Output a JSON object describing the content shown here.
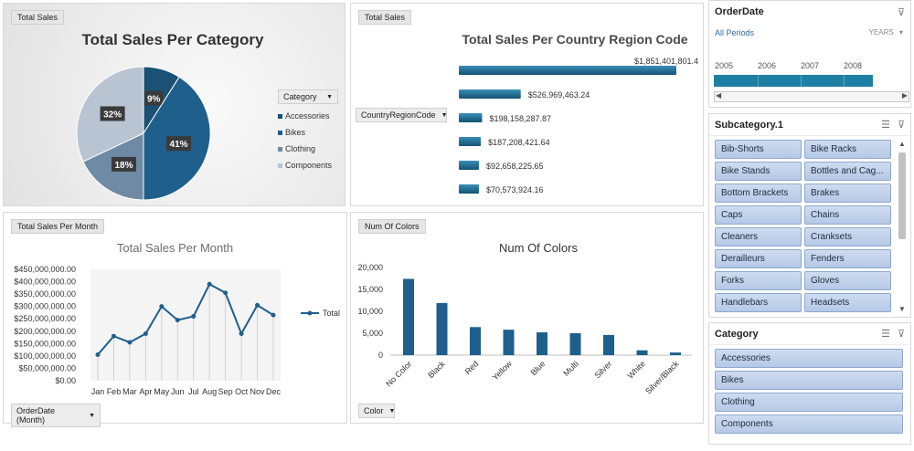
{
  "panels": {
    "pie": {
      "tag": "Total Sales",
      "title": "Total Sales Per Category",
      "legend_title": "Category",
      "legend": [
        {
          "name": "Accessories",
          "color": "#1a5174"
        },
        {
          "name": "Bikes",
          "color": "#1f5f8b"
        },
        {
          "name": "Clothing",
          "color": "#6e8aa4"
        },
        {
          "name": "Components",
          "color": "#b8c4d2"
        }
      ],
      "slices": [
        {
          "name": "Accessories",
          "pct": 9,
          "label": "9%",
          "color": "#1a5174"
        },
        {
          "name": "Bikes",
          "pct": 41,
          "label": "41%",
          "color": "#1f5f8b"
        },
        {
          "name": "Clothing",
          "pct": 18,
          "label": "18%",
          "color": "#6e8aa4"
        },
        {
          "name": "Components",
          "pct": 32,
          "label": "32%",
          "color": "#b8c4d2"
        }
      ]
    },
    "country": {
      "tag": "Total Sales",
      "title": "Total Sales Per Country Region Code",
      "filter_label": "CountryRegionCode",
      "bars": [
        {
          "value": 1851401801.4,
          "label": "$1,851,401,801.4"
        },
        {
          "value": 526969463.24,
          "label": "$526,969,463.24"
        },
        {
          "value": 198158287.87,
          "label": "$198,158,287.87"
        },
        {
          "value": 187208421.64,
          "label": "$187,208,421.64"
        },
        {
          "value": 92658225.65,
          "label": "$92,658,225.65"
        },
        {
          "value": 70573924.16,
          "label": "$70,573,924.16"
        }
      ]
    },
    "month": {
      "tag": "Total Sales Per Month",
      "title": "Total Sales Per Month",
      "legend": "Total",
      "filter_label": "OrderDate (Month)",
      "yticks": [
        "$450,000,000.00",
        "$400,000,000.00",
        "$350,000,000.00",
        "$300,000,000.00",
        "$250,000,000.00",
        "$200,000,000.00",
        "$150,000,000.00",
        "$100,000,000.00",
        "$50,000,000.00",
        "$0.00"
      ]
    },
    "colors": {
      "tag": "Num Of Colors",
      "title": "Num Of Colors",
      "filter_label": "Color",
      "yticks": [
        "20,000",
        "15,000",
        "10,000",
        "5,000",
        "0"
      ]
    }
  },
  "chart_data": [
    {
      "type": "pie",
      "title": "Total Sales Per Category",
      "categories": [
        "Accessories",
        "Bikes",
        "Clothing",
        "Components"
      ],
      "values": [
        9,
        41,
        18,
        32
      ]
    },
    {
      "type": "bar",
      "title": "Total Sales Per Country Region Code",
      "values": [
        1851401801.4,
        526969463.24,
        198158287.87,
        187208421.64,
        92658225.65,
        70573924.16
      ]
    },
    {
      "type": "line",
      "title": "Total Sales Per Month",
      "categories": [
        "Jan",
        "Feb",
        "Mar",
        "Apr",
        "May",
        "Jun",
        "Jul",
        "Aug",
        "Sep",
        "Oct",
        "Nov",
        "Dec"
      ],
      "series": [
        {
          "name": "Total",
          "values": [
            105000000,
            180000000,
            155000000,
            190000000,
            300000000,
            245000000,
            260000000,
            390000000,
            355000000,
            190000000,
            305000000,
            265000000
          ]
        }
      ],
      "ylim": [
        0,
        450000000
      ]
    },
    {
      "type": "bar",
      "title": "Num Of Colors",
      "categories": [
        "No Color",
        "Black",
        "Red",
        "Yellow",
        "Blue",
        "Multi",
        "Silver",
        "White",
        "Silver/Black"
      ],
      "values": [
        17400,
        11900,
        6400,
        5800,
        5200,
        5000,
        4600,
        1100,
        600
      ],
      "ylim": [
        0,
        20000
      ]
    }
  ],
  "orderdate": {
    "title": "OrderDate",
    "all_periods": "All Periods",
    "level": "YEARS",
    "years": [
      "2005",
      "2006",
      "2007",
      "2008"
    ]
  },
  "subcategory": {
    "title": "Subcategory.1",
    "items": [
      "Bib-Shorts",
      "Bike Racks",
      "Bike Stands",
      "Bottles and Cag...",
      "Bottom Brackets",
      "Brakes",
      "Caps",
      "Chains",
      "Cleaners",
      "Cranksets",
      "Derailleurs",
      "Fenders",
      "Forks",
      "Gloves",
      "Handlebars",
      "Headsets"
    ]
  },
  "category": {
    "title": "Category",
    "items": [
      "Accessories",
      "Bikes",
      "Clothing",
      "Components"
    ]
  },
  "icons": {
    "multiselect": "multi-select-icon",
    "clearfilter": "clear-filter-icon",
    "dropdown": "dropdown-arrow-icon"
  }
}
